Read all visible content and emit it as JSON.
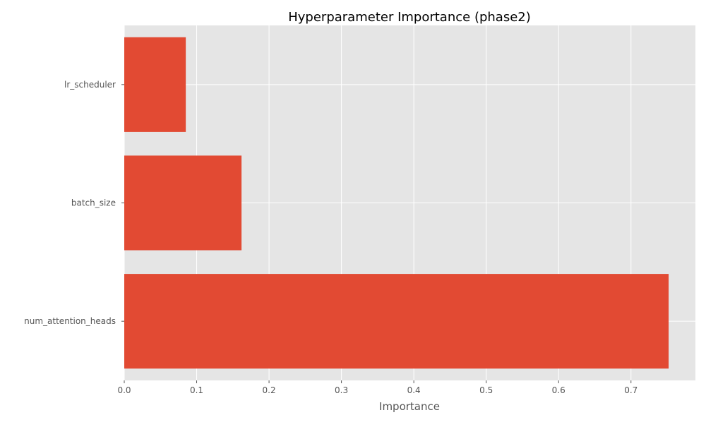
{
  "chart_data": {
    "type": "bar",
    "orientation": "horizontal",
    "title": "Hyperparameter Importance (phase2)",
    "xlabel": "Importance",
    "ylabel": "",
    "categories": [
      "lr_scheduler",
      "batch_size",
      "num_attention_heads"
    ],
    "values": [
      0.085,
      0.162,
      0.752
    ],
    "xlim": [
      0,
      0.789
    ],
    "xticks": [
      "0.0",
      "0.1",
      "0.2",
      "0.3",
      "0.4",
      "0.5",
      "0.6",
      "0.7"
    ],
    "grid": true,
    "bar_color": "#E24A33",
    "plot_background": "#E5E5E5"
  }
}
